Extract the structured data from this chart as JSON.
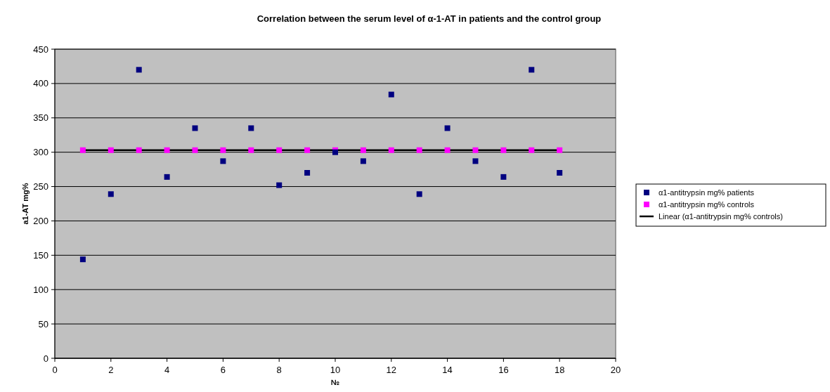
{
  "chart_data": {
    "type": "scatter",
    "title": "Correlation between the serum level of α-1-AT in patients and   the control  group",
    "xlabel": "№",
    "ylabel": "a1-AT mg%",
    "xlim": [
      0,
      20
    ],
    "xticks": [
      0,
      2,
      4,
      6,
      8,
      10,
      12,
      14,
      16,
      18,
      20
    ],
    "ylim": [
      0,
      450
    ],
    "yticks": [
      0,
      50,
      100,
      150,
      200,
      250,
      300,
      350,
      400,
      450
    ],
    "grid": "y",
    "legend": "right",
    "marker": "square",
    "x": [
      1,
      2,
      3,
      4,
      5,
      6,
      7,
      8,
      9,
      10,
      11,
      12,
      13,
      14,
      15,
      16,
      17,
      18
    ],
    "series": [
      {
        "name": "α1-antitrypsin mg% patients",
        "color": "#000080",
        "values": [
          144,
          239,
          420,
          264,
          335,
          287,
          335,
          252,
          270,
          300,
          287,
          384,
          239,
          335,
          287,
          264,
          420,
          270
        ]
      },
      {
        "name": "α1-antitrypsin mg% controls",
        "color": "#ff00ff",
        "values": [
          303,
          303,
          303,
          303,
          303,
          303,
          303,
          303,
          303,
          303,
          303,
          303,
          303,
          303,
          303,
          303,
          303,
          303
        ]
      },
      {
        "name": "Linear (α1-antitrypsin mg% controls)",
        "type": "line",
        "color": "#000000",
        "x": [
          1,
          18
        ],
        "values": [
          303,
          303
        ],
        "line_style": "solid",
        "marker": "none"
      }
    ]
  }
}
